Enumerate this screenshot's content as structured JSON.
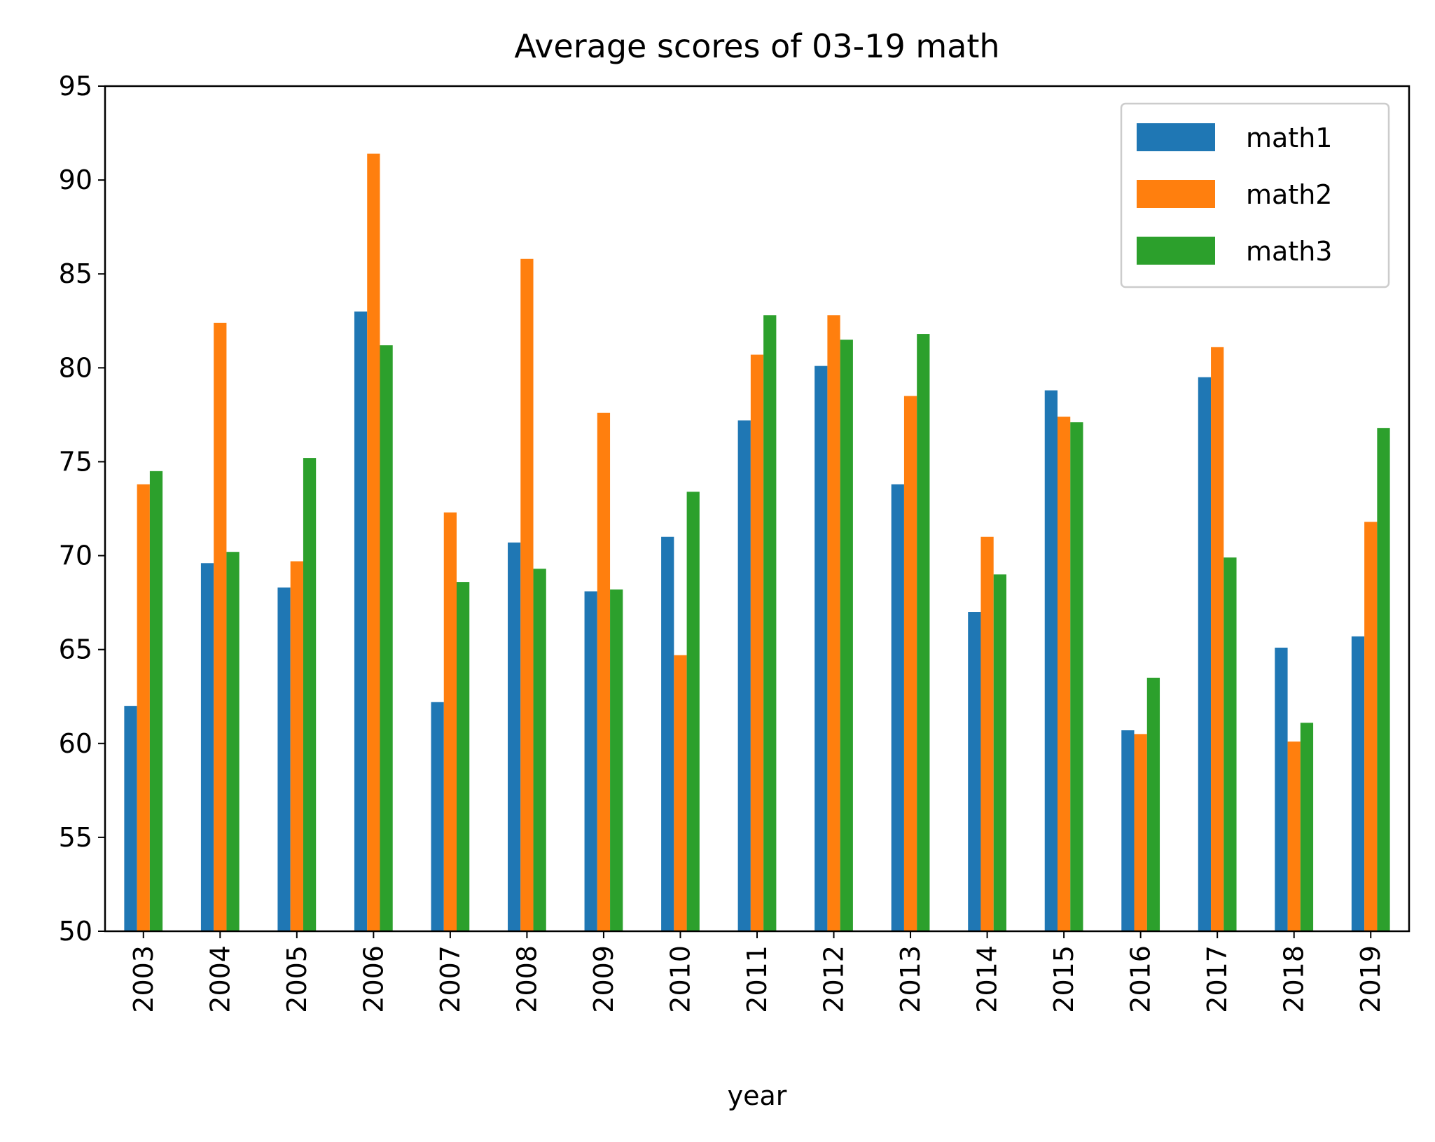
{
  "chart_data": {
    "type": "bar",
    "title": "Average scores of 03-19 math",
    "xlabel": "year",
    "ylabel": "",
    "ylim": [
      50,
      95
    ],
    "yticks": [
      50,
      55,
      60,
      65,
      70,
      75,
      80,
      85,
      90,
      95
    ],
    "grid": false,
    "legend_position": "top-right",
    "categories": [
      "2003",
      "2004",
      "2005",
      "2006",
      "2007",
      "2008",
      "2009",
      "2010",
      "2011",
      "2012",
      "2013",
      "2014",
      "2015",
      "2016",
      "2017",
      "2018",
      "2019"
    ],
    "series": [
      {
        "name": "math1",
        "color": "#1f77b4",
        "values": [
          62.0,
          69.6,
          68.3,
          83.0,
          62.2,
          70.7,
          68.1,
          71.0,
          77.2,
          80.1,
          73.8,
          67.0,
          78.8,
          60.7,
          79.5,
          65.1,
          65.7
        ]
      },
      {
        "name": "math2",
        "color": "#ff7f0e",
        "values": [
          73.8,
          82.4,
          69.7,
          91.4,
          72.3,
          85.8,
          77.6,
          64.7,
          80.7,
          82.8,
          78.5,
          71.0,
          77.4,
          60.5,
          81.1,
          60.1,
          71.8
        ]
      },
      {
        "name": "math3",
        "color": "#2ca02c",
        "values": [
          74.5,
          70.2,
          75.2,
          81.2,
          68.6,
          69.3,
          68.2,
          73.4,
          82.8,
          81.5,
          81.8,
          69.0,
          77.1,
          63.5,
          69.9,
          61.1,
          76.8
        ]
      }
    ]
  }
}
